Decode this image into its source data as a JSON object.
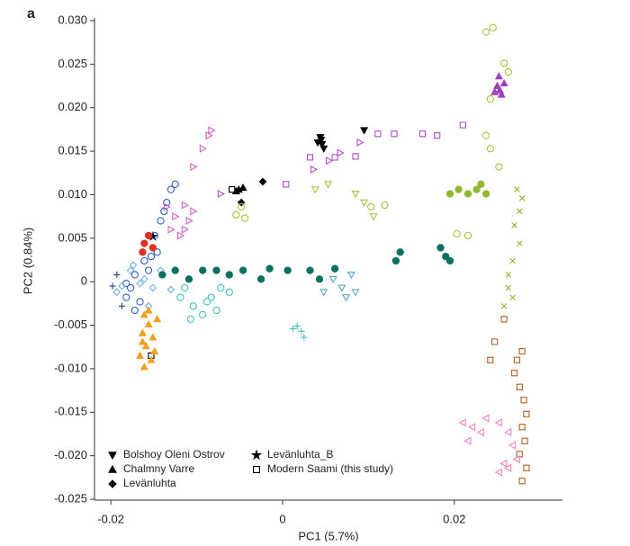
{
  "chart_data": {
    "type": "scatter",
    "panel_label": "a",
    "x_label": "PC1 (5.7%)",
    "y_label": "PC2 (0.84%)",
    "xlim": [
      -0.0219,
      0.0326
    ],
    "ylim": [
      -0.0251,
      0.0301
    ],
    "xticks": [
      -0.02,
      0,
      0.02
    ],
    "yticks": [
      {
        "value": 0.03,
        "label": "0.030"
      },
      0.025,
      {
        "value": 0.02,
        "label": "0.020"
      },
      0.015,
      {
        "value": 0.01,
        "label": "0.010"
      },
      0.005,
      0,
      -0.005,
      {
        "value": -0.01,
        "label": "-0.010"
      },
      -0.015,
      {
        "value": -0.02,
        "label": "-0.020"
      },
      -0.025
    ],
    "legend": "lower left",
    "series": [
      {
        "name": "Bolshoy Oleni Ostrov",
        "color": "#000000",
        "marker": "triangle-down",
        "filled": true,
        "x": [
          0.0045,
          0.0046,
          0.0048,
          0.0044,
          0.0095,
          0.0041
        ],
        "y": [
          0.0163,
          0.0158,
          0.0153,
          0.0166,
          0.0174,
          0.016
        ]
      },
      {
        "name": "Chalmny Varre",
        "color": "#000000",
        "marker": "triangle-up",
        "filled": true,
        "x": [
          -0.0051,
          -0.0046,
          -0.0054
        ],
        "y": [
          0.0106,
          0.0108,
          0.0104
        ]
      },
      {
        "name": "Levänluhta",
        "color": "#000000",
        "marker": "diamond",
        "filled": true,
        "x": [
          -0.0023,
          -0.0048
        ],
        "y": [
          0.0115,
          0.0091
        ]
      },
      {
        "name": "Levänluhta_B",
        "color": "#000000",
        "marker": "star",
        "filled": true,
        "x": [
          -0.0151
        ],
        "y": [
          0.0052
        ]
      },
      {
        "name": "Modern Saami (this study)",
        "color": "#000000",
        "marker": "square",
        "filled": false,
        "x": [
          -0.0059,
          -0.0153
        ],
        "y": [
          0.0106,
          -0.0085
        ]
      },
      {
        "color": "#3060c0",
        "marker": "circle",
        "filled": false,
        "x": [
          -0.013,
          -0.0135,
          -0.0142,
          -0.0149,
          -0.0161,
          -0.0172,
          -0.0177,
          -0.0182,
          -0.0166,
          -0.0156,
          -0.0146,
          -0.0125,
          -0.0172,
          -0.0182,
          -0.0138,
          -0.0153
        ],
        "y": [
          0.0106,
          0.0091,
          0.007,
          0.0053,
          0.0024,
          0.0008,
          -0.0007,
          -0.0018,
          -0.0023,
          0.0013,
          0.0034,
          0.0112,
          -0.0033,
          -0.0002,
          0.0081,
          0.0029
        ]
      },
      {
        "color": "#70b0e0",
        "marker": "diamond",
        "filled": false,
        "x": [
          -0.0187,
          -0.0193,
          -0.0174,
          -0.0161,
          -0.0151,
          -0.0142,
          -0.013,
          -0.0156,
          -0.0166,
          -0.0177
        ],
        "y": [
          -0.0005,
          -0.0012,
          0.0019,
          0.0003,
          -0.0007,
          0.0013,
          -0.0009,
          -0.0028,
          -0.0002,
          0.0013
        ]
      },
      {
        "color": "#f0a020",
        "marker": "triangle-up",
        "filled": true,
        "x": [
          -0.0161,
          -0.0156,
          -0.0163,
          -0.0151,
          -0.0159,
          -0.0166,
          -0.0153,
          -0.0161,
          -0.0146,
          -0.0149,
          -0.0163,
          -0.0156
        ],
        "y": [
          -0.0038,
          -0.0049,
          -0.0059,
          -0.0064,
          -0.0074,
          -0.0085,
          -0.009,
          -0.0098,
          -0.0043,
          -0.008,
          -0.0069,
          -0.0033
        ]
      },
      {
        "color": "#e03020",
        "marker": "circle",
        "filled": true,
        "x": [
          -0.0161,
          -0.0156,
          -0.0163,
          -0.0151
        ],
        "y": [
          0.0044,
          0.0053,
          0.0034,
          0.0039
        ]
      },
      {
        "color": "#d060c8",
        "marker": "triangle-right",
        "filled": false,
        "x": [
          -0.0135,
          -0.0125,
          -0.0114,
          -0.0109,
          -0.0119,
          -0.0104,
          -0.013,
          -0.0114,
          -0.0104,
          -0.0093,
          -0.0083,
          -0.0086
        ],
        "y": [
          0.0086,
          0.0075,
          0.006,
          0.007,
          0.0053,
          0.0081,
          0.006,
          0.0088,
          0.0132,
          0.0153,
          0.0174,
          0.0168
        ]
      },
      {
        "color": "#0a7060",
        "marker": "circle",
        "filled": true,
        "x": [
          -0.014,
          -0.0125,
          -0.0109,
          -0.0093,
          -0.0077,
          -0.0062,
          -0.0046,
          -0.0025,
          -0.0015,
          0.0006,
          0.0032,
          0.0043,
          0.0061,
          0.0132,
          0.019,
          0.0195,
          0.0184,
          0.0137
        ],
        "y": [
          0.0008,
          0.0013,
          0.0003,
          0.0013,
          0.0013,
          0.0008,
          0.0013,
          0.0003,
          0.0015,
          0.0013,
          0.0013,
          0.0003,
          0.0015,
          0.0024,
          0.0029,
          0.0024,
          0.0039,
          0.0034
        ]
      },
      {
        "color": "#40c0b8",
        "marker": "circle",
        "filled": false,
        "x": [
          -0.0119,
          -0.0104,
          -0.0093,
          -0.0083,
          -0.0072,
          -0.0077,
          -0.0062,
          -0.0107,
          -0.0114,
          -0.0088
        ],
        "y": [
          -0.0018,
          -0.0028,
          -0.0038,
          -0.0018,
          -0.0007,
          -0.0033,
          -0.0012,
          -0.0043,
          -0.0007,
          -0.0023
        ]
      },
      {
        "color": "#5aa8c8",
        "marker": "triangle-down",
        "filled": false,
        "x": [
          0.0059,
          0.0069,
          0.008,
          0.0085,
          0.0048,
          0.0074
        ],
        "y": [
          0.0003,
          -0.0007,
          0.0008,
          -0.0012,
          -0.0012,
          -0.0018
        ]
      },
      {
        "color": "#40c0b8",
        "marker": "plus",
        "filled": false,
        "x": [
          0.0017,
          0.0022,
          0.0025,
          0.0012
        ],
        "y": [
          -0.0051,
          -0.0057,
          -0.0064,
          -0.0054
        ]
      },
      {
        "color": "#b050c8",
        "marker": "square",
        "filled": false,
        "x": [
          0.0004,
          0.0032,
          0.0061,
          0.0085,
          0.0111,
          0.013,
          0.0163,
          0.018,
          0.021
        ],
        "y": [
          0.0112,
          0.0143,
          0.0143,
          0.0144,
          0.017,
          0.017,
          0.017,
          0.0168,
          0.018
        ]
      },
      {
        "color": "#b050c8",
        "marker": "triangle-right",
        "filled": false,
        "x": [
          0.0036,
          0.0054,
          0.0067,
          -0.0072,
          0.009
        ],
        "y": [
          0.0129,
          0.0139,
          0.0148,
          0.0101,
          0.016
        ]
      },
      {
        "color": "#a040c0",
        "marker": "triangle-up",
        "filled": true,
        "x": [
          0.025,
          0.0253,
          0.0255,
          0.0247,
          0.0258,
          0.0252
        ],
        "y": [
          0.0225,
          0.022,
          0.0215,
          0.0218,
          0.0228,
          0.0236
        ]
      },
      {
        "color": "#a8c040",
        "marker": "circle",
        "filled": false,
        "x": [
          0.0237,
          0.0245,
          0.0258,
          0.0263,
          0.0242,
          0.0237,
          0.0242,
          0.0252,
          0.0216,
          0.0203,
          0.0103,
          0.0119,
          -0.0054,
          -0.0048,
          -0.0044
        ],
        "y": [
          0.0287,
          0.0292,
          0.0251,
          0.0241,
          0.021,
          0.0168,
          0.0153,
          0.0132,
          0.0053,
          0.0055,
          0.0086,
          0.0088,
          0.0077,
          0.0086,
          0.0073
        ]
      },
      {
        "color": "#90b830",
        "marker": "circle",
        "filled": true,
        "x": [
          0.0195,
          0.0205,
          0.0216,
          0.0231,
          0.0237,
          0.0226
        ],
        "y": [
          0.0101,
          0.0106,
          0.0101,
          0.0112,
          0.0101,
          0.0106
        ]
      },
      {
        "color": "#90b830",
        "marker": "cross",
        "filled": false,
        "x": [
          0.0273,
          0.0279,
          0.0276,
          0.027,
          0.0276,
          0.0268,
          0.0263,
          0.0268,
          0.0258,
          0.0263
        ],
        "y": [
          0.0106,
          0.0096,
          0.0081,
          0.0065,
          0.0044,
          0.0024,
          -0.0007,
          -0.0018,
          -0.0028,
          0.0008
        ]
      },
      {
        "color": "#a8c040",
        "marker": "triangle-down",
        "filled": false,
        "x": [
          0.0085,
          0.0095,
          0.0106,
          0.0038,
          0.0053
        ],
        "y": [
          0.0101,
          0.0091,
          0.0075,
          0.0106,
          0.0112
        ]
      },
      {
        "color": "#b06020",
        "marker": "square",
        "filled": false,
        "x": [
          0.0279,
          0.0273,
          0.027,
          0.0276,
          0.0281,
          0.0284,
          0.0279,
          0.0282,
          0.0276,
          0.0284,
          0.0279,
          0.0247,
          0.0242,
          0.0258
        ],
        "y": [
          -0.008,
          -0.009,
          -0.0105,
          -0.0121,
          -0.0136,
          -0.0152,
          -0.0167,
          -0.0183,
          -0.0198,
          -0.0214,
          -0.0229,
          -0.0069,
          -0.009,
          -0.0043
        ]
      },
      {
        "color": "#f080c0",
        "marker": "triangle-left",
        "filled": false,
        "x": [
          0.021,
          0.0221,
          0.0237,
          0.0252,
          0.0263,
          0.0268,
          0.0273,
          0.0258,
          0.0252,
          0.0263,
          0.0216,
          0.0231
        ],
        "y": [
          -0.0162,
          -0.0167,
          -0.0157,
          -0.0162,
          -0.0173,
          -0.0188,
          -0.0204,
          -0.0209,
          -0.0219,
          -0.0214,
          -0.0183,
          -0.0173
        ]
      },
      {
        "color": "#304080",
        "marker": "plus",
        "filled": false,
        "x": [
          -0.0198,
          -0.0187,
          -0.0193
        ],
        "y": [
          -0.0005,
          -0.0028,
          0.0008
        ]
      }
    ]
  }
}
